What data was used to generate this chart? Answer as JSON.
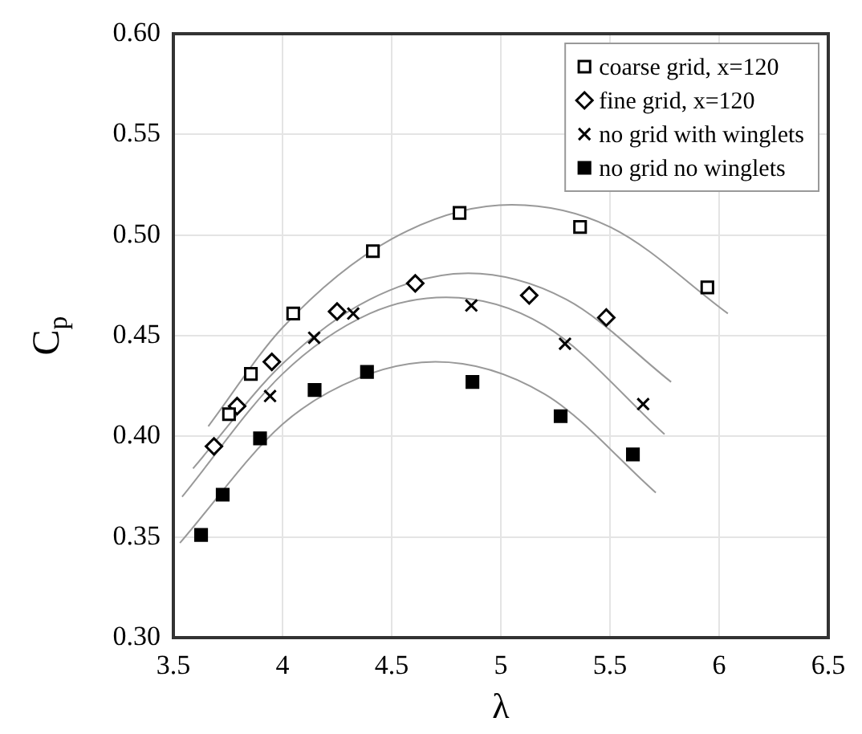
{
  "chart_data": {
    "type": "scatter",
    "xlabel": "λ",
    "ylabel": "C$_{p}$",
    "xlim": [
      3.5,
      6.5
    ],
    "xticks": [
      3.5,
      4,
      4.5,
      5,
      5.5,
      6,
      6.5
    ],
    "ylim": [
      0.3,
      0.6
    ],
    "yticks": [
      {
        "value": 0.3,
        "label": "0.30"
      },
      {
        "value": 0.35,
        "label": "0.35"
      },
      {
        "value": 0.4,
        "label": "0.40"
      },
      {
        "value": 0.45,
        "label": "0.45"
      },
      {
        "value": 0.5,
        "label": "0.50"
      },
      {
        "value": 0.55,
        "label": "0.55"
      },
      {
        "value": 0.6,
        "label": "0.60"
      }
    ],
    "grid": true,
    "legend": "top right",
    "series": [
      {
        "name": "coarse grid, x=120",
        "color": "#ffffff",
        "marker": "square",
        "x": [
          3.755,
          3.855,
          4.049,
          4.414,
          4.811,
          5.363,
          5.946
        ],
        "values": [
          0.411,
          0.431,
          0.461,
          0.492,
          0.511,
          0.504,
          0.474
        ]
      },
      {
        "name": "fine grid, x=120",
        "color": "#ffffff",
        "marker": "diamond",
        "x": [
          3.686,
          3.792,
          3.951,
          4.25,
          4.608,
          5.13,
          5.483
        ],
        "values": [
          0.395,
          0.415,
          0.437,
          0.462,
          0.476,
          0.47,
          0.459
        ]
      },
      {
        "name": "no grid with winglets",
        "color": "#000000",
        "marker": "cross",
        "x": [
          3.943,
          4.145,
          4.324,
          4.865,
          5.294,
          5.652
        ],
        "values": [
          0.42,
          0.449,
          0.461,
          0.465,
          0.446,
          0.416
        ]
      },
      {
        "name": "no grid no winglets",
        "color": "#000000",
        "marker": "square",
        "x": [
          3.627,
          3.726,
          3.897,
          4.147,
          4.387,
          4.87,
          5.274,
          5.605
        ],
        "values": [
          0.351,
          0.371,
          0.399,
          0.423,
          0.432,
          0.427,
          0.41,
          0.391
        ]
      },
      {
        "type": "line",
        "color": "#999999",
        "marker": "none",
        "x": [
          3.66,
          4.0,
          4.5,
          5.05,
          5.5,
          6.04
        ],
        "values": [
          0.405,
          0.454,
          0.498,
          0.515,
          0.504,
          0.461
        ]
      },
      {
        "type": "line",
        "color": "#999999",
        "marker": "none",
        "x": [
          3.59,
          4.0,
          4.4,
          4.85,
          5.3,
          5.78
        ],
        "values": [
          0.384,
          0.436,
          0.468,
          0.481,
          0.468,
          0.427
        ]
      },
      {
        "type": "line",
        "color": "#999999",
        "marker": "none",
        "x": [
          3.54,
          4.0,
          4.4,
          4.75,
          5.2,
          5.75
        ],
        "values": [
          0.37,
          0.431,
          0.461,
          0.469,
          0.455,
          0.401
        ]
      },
      {
        "type": "line",
        "color": "#999999",
        "marker": "none",
        "x": [
          3.53,
          4.0,
          4.35,
          4.7,
          5.2,
          5.71
        ],
        "values": [
          0.347,
          0.406,
          0.429,
          0.437,
          0.421,
          0.372
        ]
      }
    ]
  }
}
